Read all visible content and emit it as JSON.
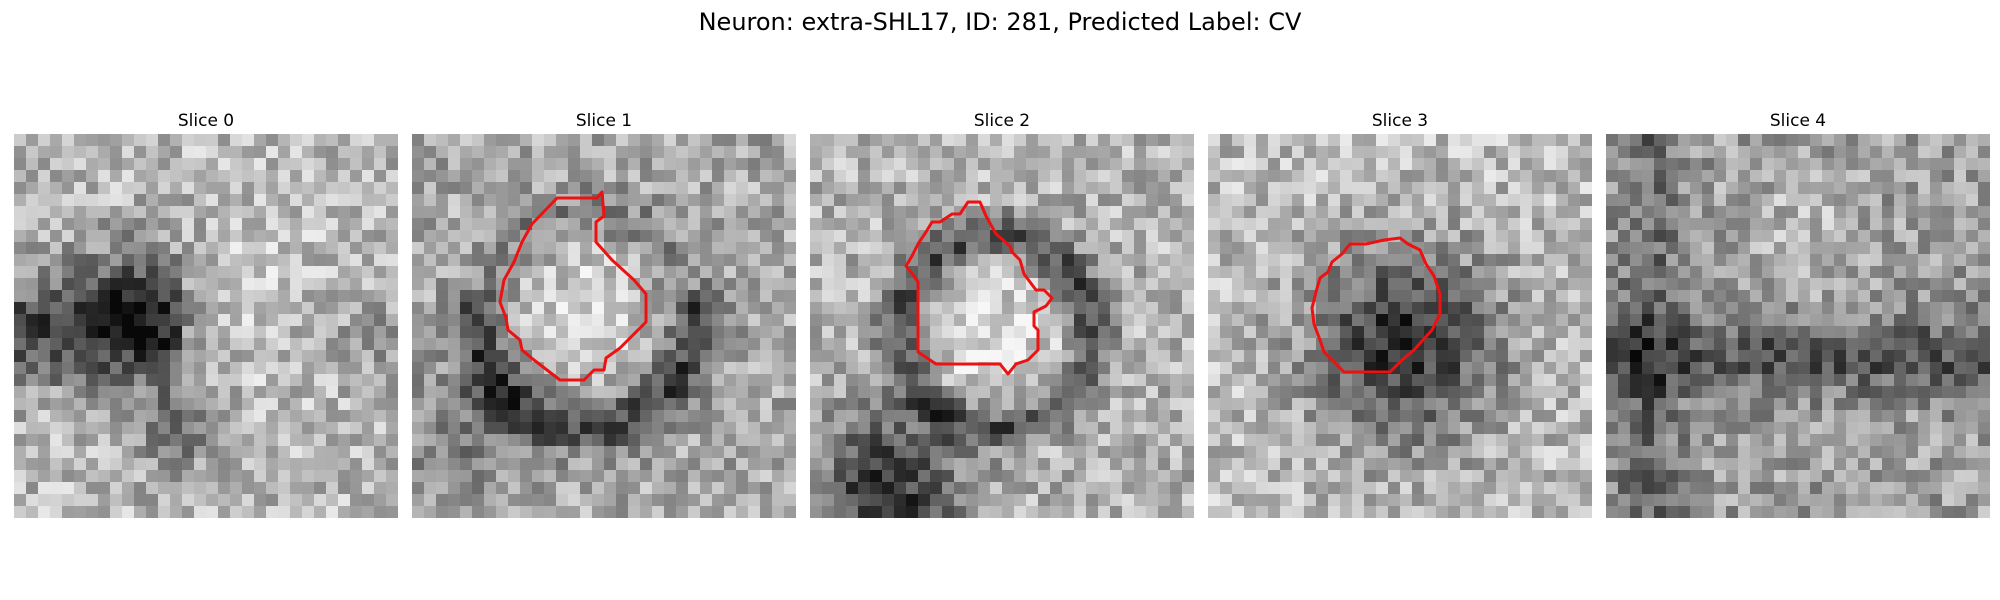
{
  "figure": {
    "title": "Neuron: extra-SHL17, ID: 281, Predicted Label: CV",
    "contour_color": "#ee1111"
  },
  "panels": [
    {
      "title": "Slice 0",
      "has_contour": false
    },
    {
      "title": "Slice 1",
      "has_contour": true
    },
    {
      "title": "Slice 2",
      "has_contour": true
    },
    {
      "title": "Slice 3",
      "has_contour": true
    },
    {
      "title": "Slice 4",
      "has_contour": false
    }
  ]
}
